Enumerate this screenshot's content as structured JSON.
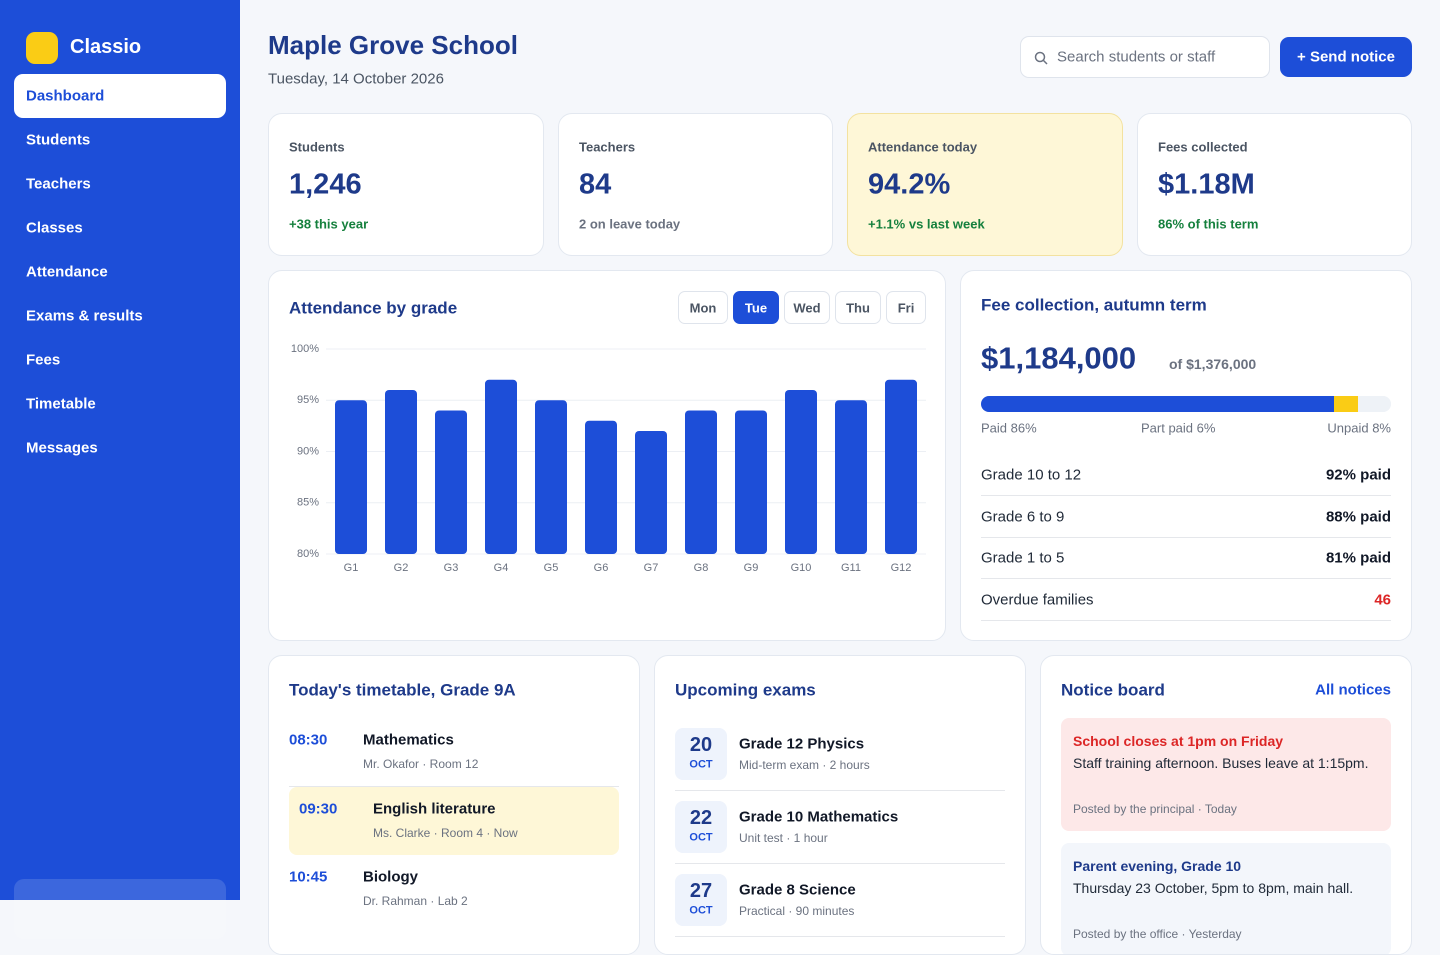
{
  "sidebar": {
    "brand": "Classio",
    "nav": [
      "Dashboard",
      "Students",
      "Teachers",
      "Classes",
      "Attendance",
      "Exams & results",
      "Fees",
      "Timetable",
      "Messages"
    ],
    "active": 0
  },
  "header": {
    "title": "Maple Grove School",
    "date": "Tuesday, 14 October 2026",
    "search": "Search students or staff",
    "button": "+ Send notice"
  },
  "stats": [
    {
      "label": "Students",
      "value": "1,246",
      "note": "+38 this year",
      "tone": "up"
    },
    {
      "label": "Teachers",
      "value": "84",
      "note": "2 on leave today",
      "tone": "muted"
    },
    {
      "label": "Attendance today",
      "value": "94.2%",
      "note": "+1.1% vs last week",
      "tone": "up",
      "highlight": true
    },
    {
      "label": "Fees collected",
      "value": "$1.18M",
      "note": "86% of this term",
      "tone": "up"
    }
  ],
  "day_tabs": {
    "days": [
      "Mon",
      "Tue",
      "Wed",
      "Thu",
      "Fri"
    ],
    "active": 1
  },
  "chart_data": {
    "type": "bar",
    "title": "Attendance by grade",
    "categories": [
      "G1",
      "G2",
      "G3",
      "G4",
      "G5",
      "G6",
      "G7",
      "G8",
      "G9",
      "G10",
      "G11",
      "G12"
    ],
    "values": [
      95,
      96,
      94,
      97,
      95,
      93,
      92,
      94,
      94,
      96,
      95,
      97
    ],
    "color": "#1d4ed8",
    "ylim": [
      80,
      100
    ],
    "yticks": [
      {
        "value": 80,
        "label": "80%"
      },
      {
        "value": 85,
        "label": "85%"
      },
      {
        "value": 90,
        "label": "90%"
      },
      {
        "value": 95,
        "label": "95%"
      },
      {
        "value": 100,
        "label": "100%"
      }
    ],
    "grid": true
  },
  "fees": {
    "title": "Fee collection, autumn term",
    "amount": "$1,184,000",
    "of": "of $1,376,000",
    "segments": [
      {
        "label": "Paid 86%",
        "value": 86,
        "color": "#1d4ed8"
      },
      {
        "label": "Part paid 6%",
        "value": 6,
        "color": "#facc15"
      },
      {
        "label": "Unpaid 8%",
        "value": 8,
        "color": "#eef2f7"
      }
    ],
    "rows": [
      {
        "name": "Grade 10 to 12",
        "value": "92% paid"
      },
      {
        "name": "Grade 6 to 9",
        "value": "88% paid"
      },
      {
        "name": "Grade 1 to 5",
        "value": "81% paid"
      },
      {
        "name": "Overdue families",
        "value": "46",
        "alert": true
      }
    ]
  },
  "timetable": {
    "title": "Today's timetable, Grade 9A",
    "items": [
      {
        "time": "08:30",
        "subject": "Mathematics",
        "detail": "Mr. Okafor · Room 12"
      },
      {
        "time": "09:30",
        "subject": "English literature",
        "detail": "Ms. Clarke · Room 4 · Now",
        "current": true
      },
      {
        "time": "10:45",
        "subject": "Biology",
        "detail": "Dr. Rahman · Lab 2"
      }
    ]
  },
  "exams": {
    "title": "Upcoming exams",
    "items": [
      {
        "day": "20",
        "month": "OCT",
        "name": "Grade 12 Physics",
        "detail": "Mid-term exam · 2 hours"
      },
      {
        "day": "22",
        "month": "OCT",
        "name": "Grade 10 Mathematics",
        "detail": "Unit test · 1 hour"
      },
      {
        "day": "27",
        "month": "OCT",
        "name": "Grade 8 Science",
        "detail": "Practical · 90 minutes"
      }
    ]
  },
  "notices": {
    "title": "Notice board",
    "link": "All notices",
    "items": [
      {
        "title": "School closes at 1pm on Friday",
        "body": "Staff training afternoon. Buses leave at 1:15pm.",
        "meta": "Posted by the principal · Today",
        "urgent": true
      },
      {
        "title": "Parent evening, Grade 10",
        "body": "Thursday 23 October, 5pm to 8pm, main hall.",
        "meta": "Posted by the office · Yesterday"
      }
    ]
  }
}
